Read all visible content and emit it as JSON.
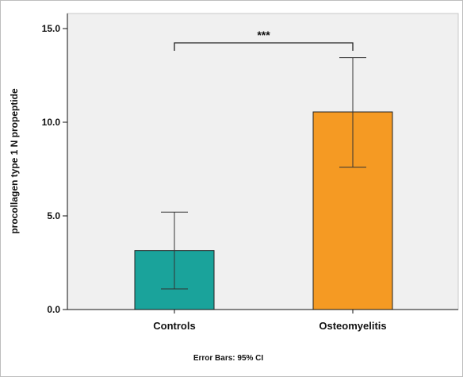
{
  "chart_data": {
    "type": "bar",
    "categories": [
      "Controls",
      "Osteomyelitis"
    ],
    "values": [
      3.15,
      10.55
    ],
    "error_bars": [
      {
        "low": 1.1,
        "high": 5.2
      },
      {
        "low": 7.6,
        "high": 13.45
      }
    ],
    "ylabel": "procollagen type 1 N propeptide",
    "xlabel": "",
    "ylim": [
      0,
      15
    ],
    "yticks": [
      0,
      5,
      10,
      15
    ],
    "ytick_labels": [
      "0.0",
      "5.0",
      "10.0",
      "15.0"
    ],
    "bar_colors": [
      "#1aa39b",
      "#f59a23"
    ],
    "plot_background": "#f0f0f0",
    "significance": {
      "between": [
        "Controls",
        "Osteomyelitis"
      ],
      "label": "***"
    },
    "footnote": "Error Bars: 95% CI",
    "grid": false
  }
}
